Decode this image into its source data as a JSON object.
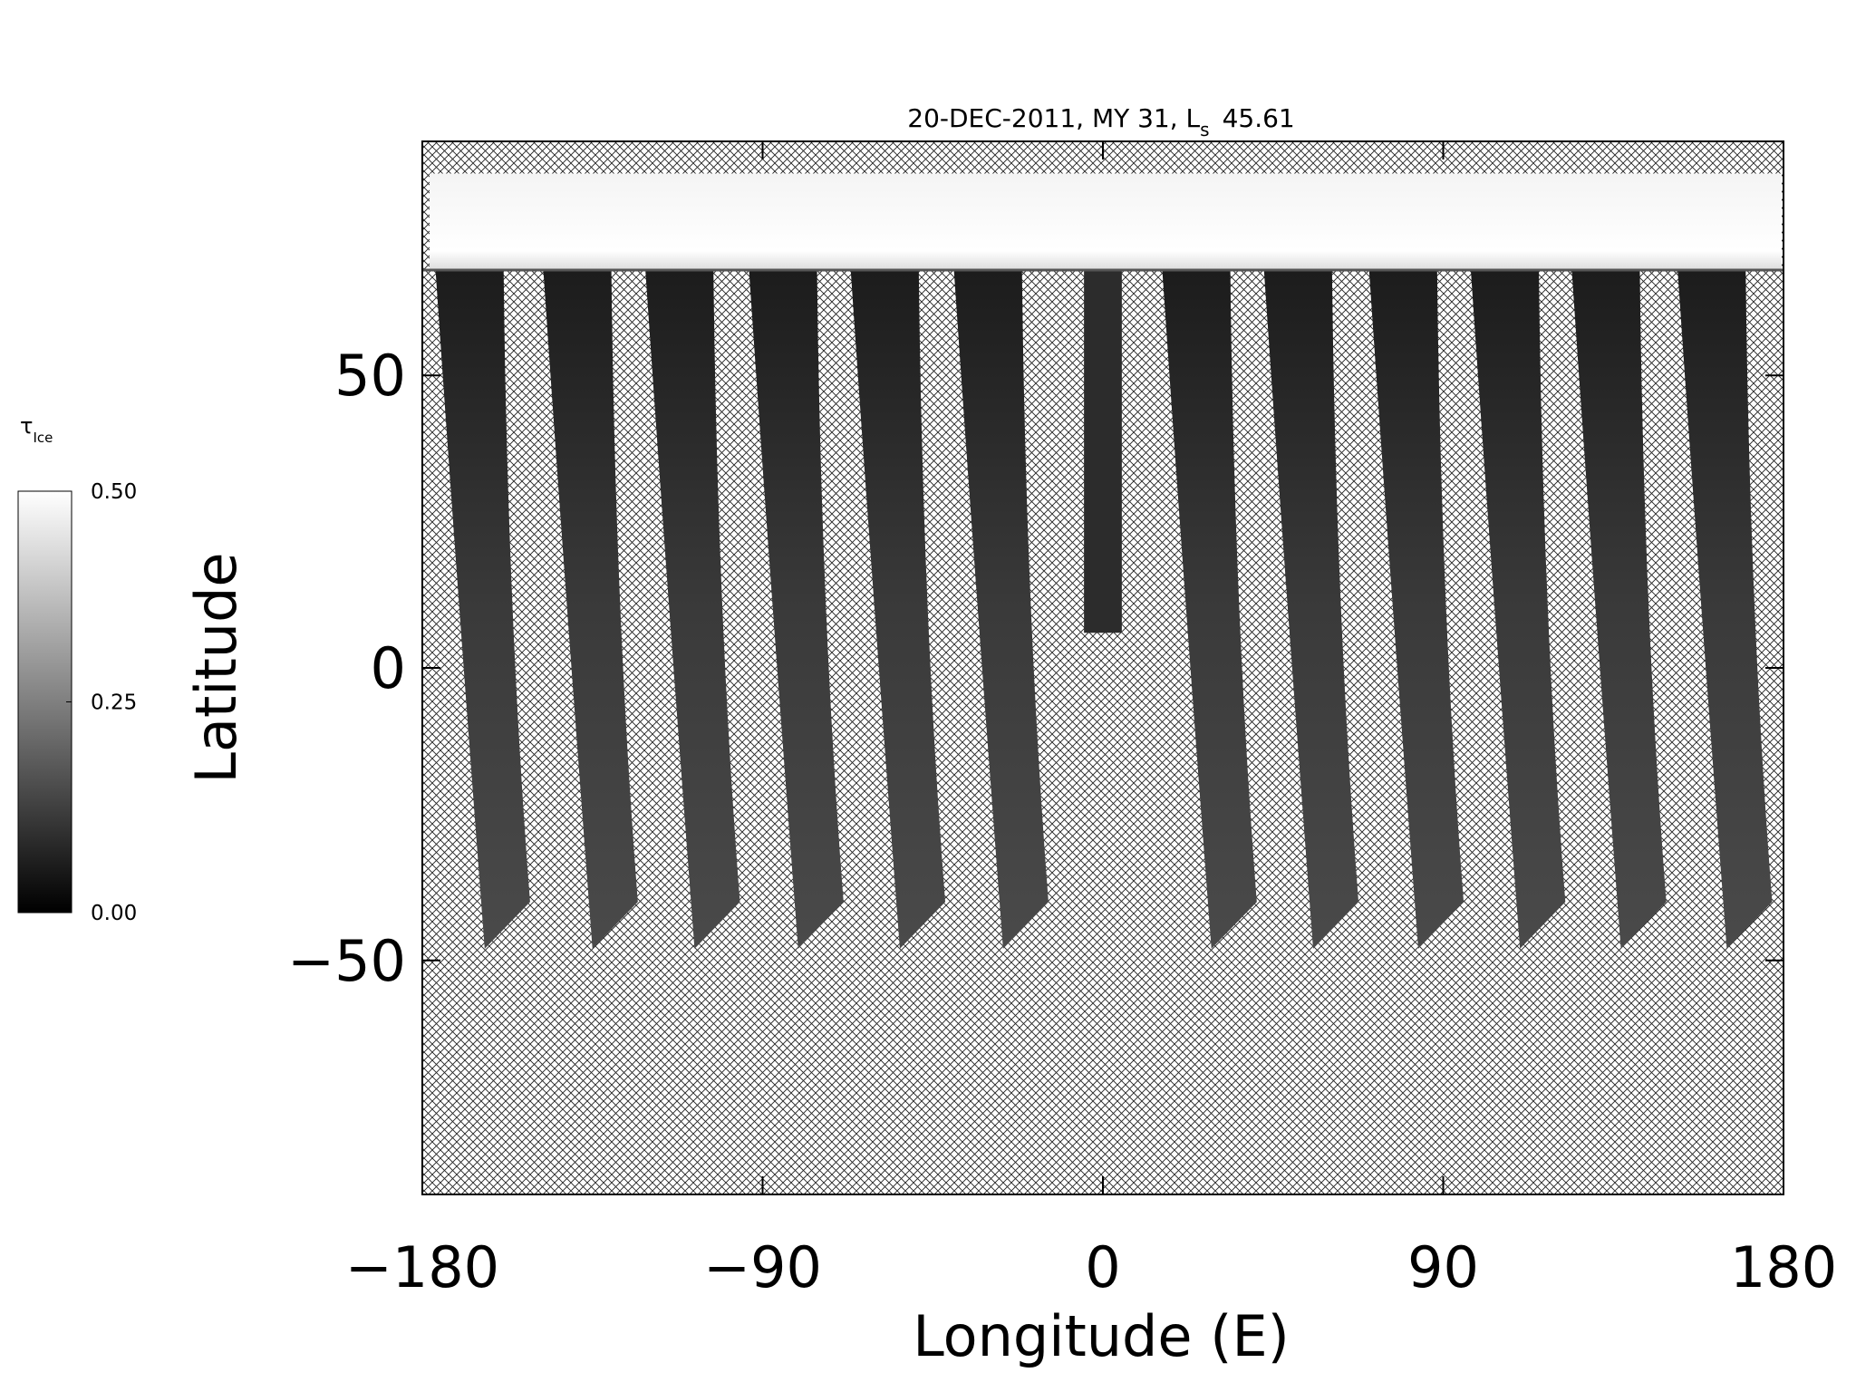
{
  "chart_data": {
    "type": "map",
    "title": {
      "text": "20-DEC-2011, MY 31,  L",
      "subscript": "s",
      "suffix": "45.61"
    },
    "xlabel": "Longitude (E)",
    "ylabel": "Latitude",
    "xlim": [
      -180,
      180
    ],
    "xticks": [
      {
        "value": -180,
        "label": "−180"
      },
      {
        "value": -90,
        "label": "−90"
      },
      0,
      90,
      180
    ],
    "ylim": [
      -90,
      90
    ],
    "yticks": [
      {
        "value": -50,
        "label": "−50"
      },
      0,
      50
    ],
    "colorbar": {
      "label": "τ",
      "label_subscript": "Ice",
      "clim": [
        0,
        0.5
      ],
      "ticks": [
        {
          "value": 0,
          "label": "0.00"
        },
        {
          "value": 0.25,
          "label": "0.25"
        },
        {
          "value": 0.5,
          "label": "0.50"
        }
      ]
    }
  }
}
